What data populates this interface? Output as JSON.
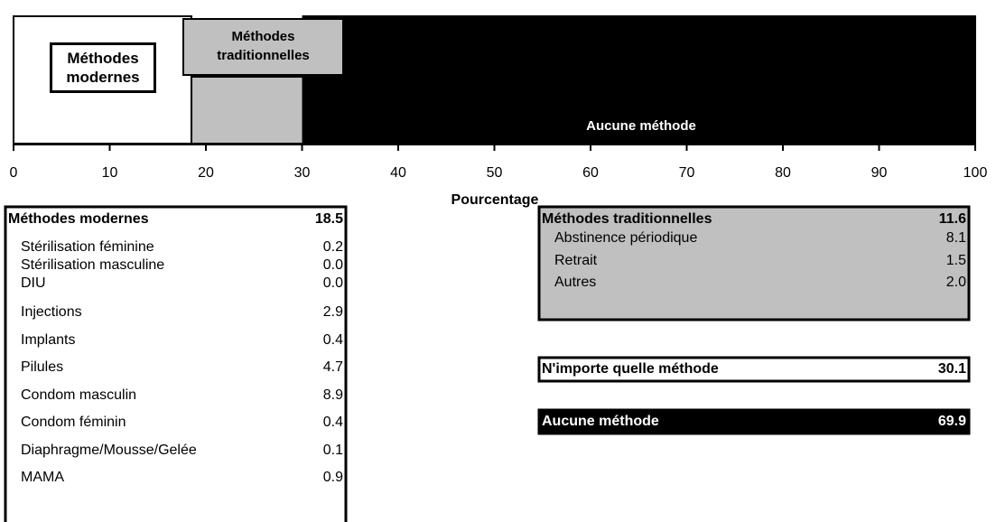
{
  "chart_data": {
    "type": "stacked_bar",
    "series": [
      {
        "name": "Méthodes modernes",
        "color": "#ffffff",
        "values": [
          18.5
        ]
      },
      {
        "name": "Méthodes traditionnelles",
        "color": "#c0c0c0",
        "values": [
          11.6
        ]
      },
      {
        "name": "Aucune méthode",
        "color": "#000000",
        "values": [
          69.9
        ]
      }
    ],
    "xlim": [
      0,
      100
    ],
    "xticks": [
      0,
      10,
      20,
      30,
      40,
      50,
      60,
      70,
      80,
      90,
      100
    ],
    "xlabel": "Pourcentage"
  },
  "modern_table": {
    "title": "Méthodes modernes",
    "total": "18.5",
    "rows": [
      {
        "label": "Stérilisation féminine",
        "value": "0.2"
      },
      {
        "label": "Stérilisation masculine",
        "value": "0.0"
      },
      {
        "label": "DIU",
        "value": "0.0"
      },
      {
        "label": "Injections",
        "value": "2.9"
      },
      {
        "label": "Implants",
        "value": "0.4"
      },
      {
        "label": "Pilules",
        "value": "4.7"
      },
      {
        "label": "Condom masculin",
        "value": "8.9"
      },
      {
        "label": "Condom féminin",
        "value": "0.4"
      },
      {
        "label": "Diaphragme/Mousse/Gelée",
        "value": "0.1"
      },
      {
        "label": "MAMA",
        "value": "0.9"
      }
    ]
  },
  "traditional_table": {
    "title": "Méthodes traditionnelles",
    "total": "11.6",
    "rows": [
      {
        "label": "Abstinence périodique",
        "value": "8.1"
      },
      {
        "label": "Retrait",
        "value": "1.5"
      },
      {
        "label": "Autres",
        "value": "2.0"
      }
    ]
  },
  "any_method": {
    "label": "N'importe quelle méthode",
    "value": "30.1"
  },
  "no_method": {
    "label": "Aucune méthode",
    "value": "69.9"
  }
}
